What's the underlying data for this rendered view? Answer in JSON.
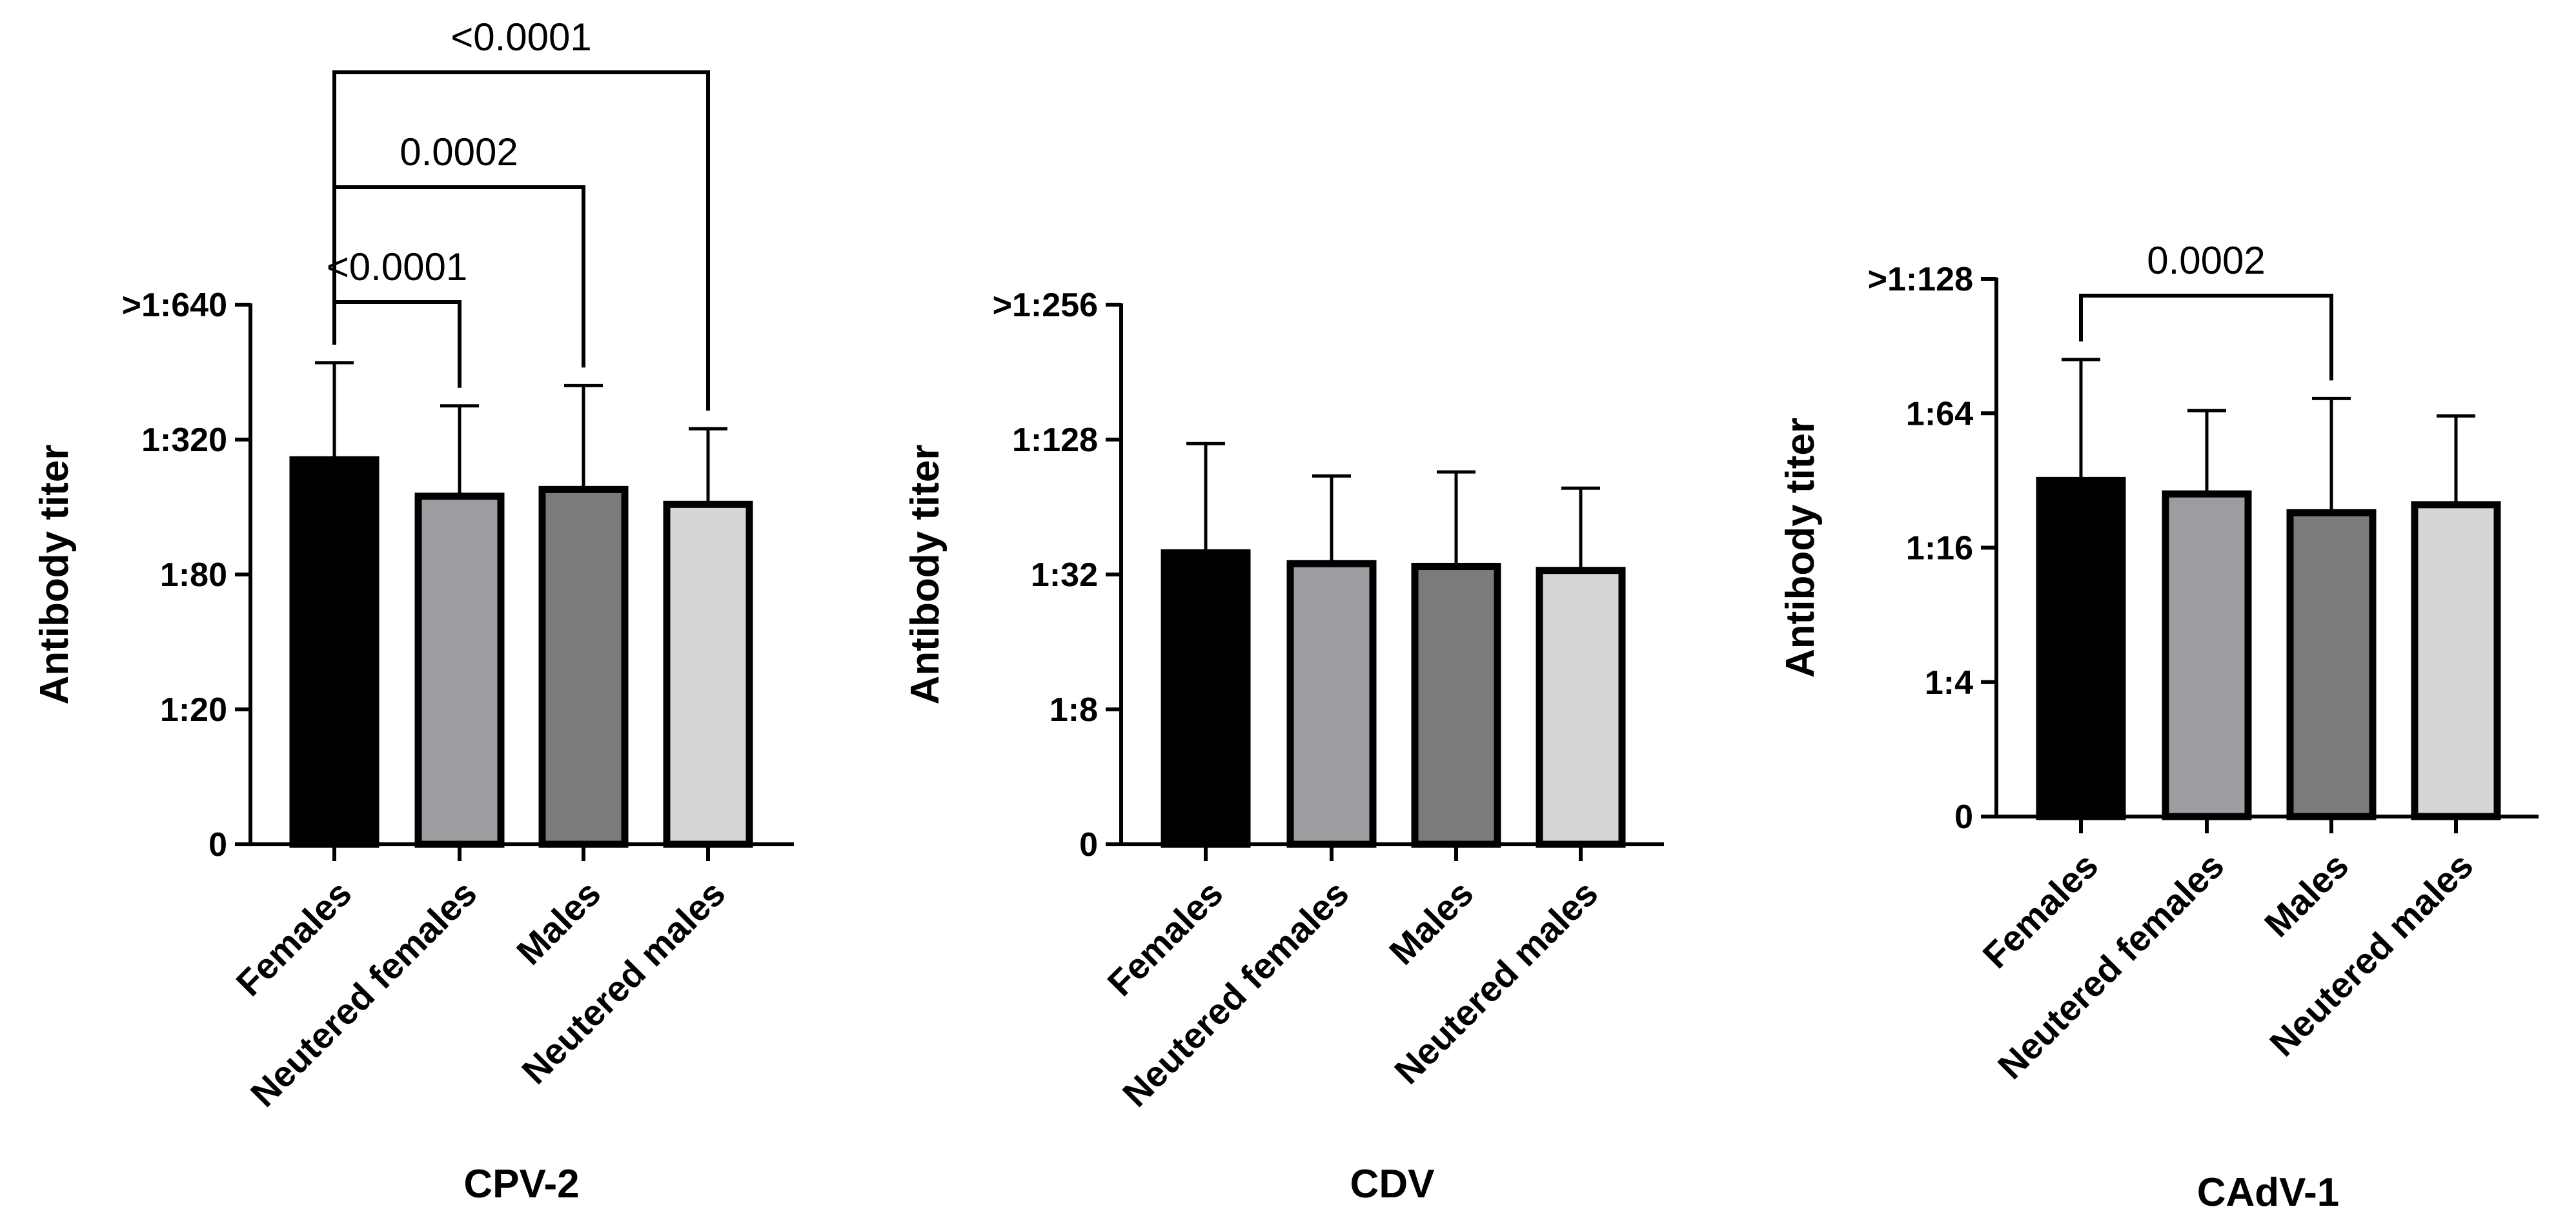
{
  "chart_data": [
    {
      "type": "bar",
      "title": "CPV-2",
      "ylabel": "Antibody titer",
      "yscale": "log2",
      "ylim_log2": [
        0,
        4
      ],
      "yticks": [
        {
          "label": "0",
          "level": 0
        },
        {
          "label": "1:20",
          "level": 1
        },
        {
          "label": "1:80",
          "level": 2
        },
        {
          "label": "1:320",
          "level": 3
        },
        {
          "label": ">1:640",
          "level": 4
        }
      ],
      "categories": [
        "Females",
        "Neutered females",
        "Males",
        "Neutered males"
      ],
      "colors": [
        "#000000",
        "#9d9ca1",
        "#7b7b7b",
        "#d6d6d6"
      ],
      "values": [
        2.85,
        2.58,
        2.63,
        2.52
      ],
      "errors_upper": [
        3.57,
        3.25,
        3.4,
        3.08
      ],
      "comparisons": [
        {
          "from": 0,
          "to": 1,
          "label": "<0.0001"
        },
        {
          "from": 0,
          "to": 2,
          "label": "0.0002"
        },
        {
          "from": 0,
          "to": 3,
          "label": "<0.0001"
        }
      ]
    },
    {
      "type": "bar",
      "title": "CDV",
      "ylabel": "Antibody titer",
      "yscale": "log2",
      "ylim_log2": [
        0,
        4
      ],
      "yticks": [
        {
          "label": "0",
          "level": 0
        },
        {
          "label": "1:8",
          "level": 1
        },
        {
          "label": "1:32",
          "level": 2
        },
        {
          "label": "1:128",
          "level": 3
        },
        {
          "label": ">1:256",
          "level": 4
        }
      ],
      "categories": [
        "Females",
        "Neutered females",
        "Males",
        "Neutered males"
      ],
      "colors": [
        "#000000",
        "#9d9ca1",
        "#7b7b7b",
        "#d6d6d6"
      ],
      "values": [
        2.16,
        2.08,
        2.06,
        2.03
      ],
      "errors_upper": [
        2.97,
        2.73,
        2.76,
        2.64
      ],
      "comparisons": []
    },
    {
      "type": "bar",
      "title": "CAdV-1",
      "ylabel": "Antibody titer",
      "yscale": "log2",
      "ylim_log2": [
        0,
        4
      ],
      "yticks": [
        {
          "label": "0",
          "level": 0
        },
        {
          "label": "1:4",
          "level": 1
        },
        {
          "label": "1:16",
          "level": 2
        },
        {
          "label": "1:64",
          "level": 3
        },
        {
          "label": ">1:128",
          "level": 4
        }
      ],
      "categories": [
        "Females",
        "Neutered females",
        "Males",
        "Neutered males"
      ],
      "colors": [
        "#000000",
        "#9d9ca1",
        "#7b7b7b",
        "#d6d6d6"
      ],
      "values": [
        2.5,
        2.4,
        2.26,
        2.32
      ],
      "errors_upper": [
        3.4,
        3.02,
        3.11,
        2.98
      ],
      "comparisons": [
        {
          "from": 0,
          "to": 2,
          "label": "0.0002"
        }
      ]
    }
  ]
}
